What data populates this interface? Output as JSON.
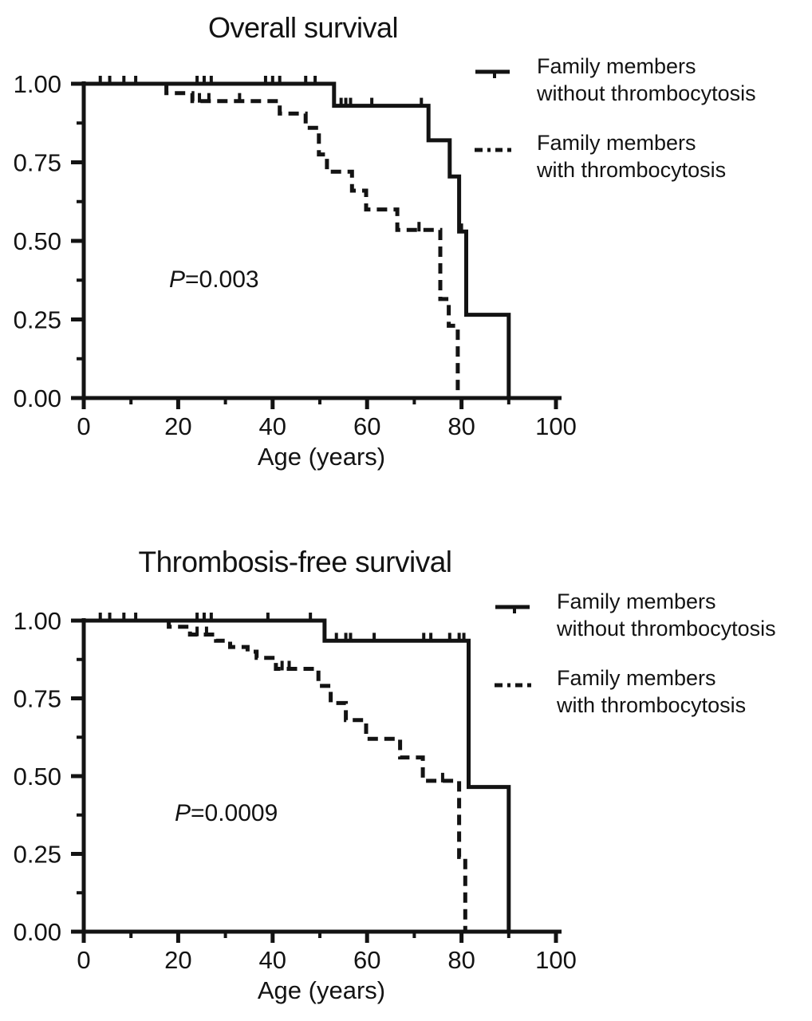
{
  "page": {
    "background": "#ffffff",
    "ink": "#131313",
    "figure_description": "Two Kaplan-Meier survival plots comparing family members with and without thrombocytosis"
  },
  "chart_data": [
    {
      "type": "line",
      "subtype": "kaplan-meier-step",
      "title": "Overall survival",
      "xlabel": "Age (years)",
      "ylabel": "",
      "xlim": [
        0,
        100
      ],
      "ylim": [
        0,
        1
      ],
      "grid": false,
      "xticks": [
        {
          "v": 0,
          "label": "0"
        },
        {
          "v": 20,
          "label": "20"
        },
        {
          "v": 40,
          "label": "40"
        },
        {
          "v": 60,
          "label": "60"
        },
        {
          "v": 80,
          "label": "80"
        },
        {
          "v": 100,
          "label": "100"
        }
      ],
      "xminor": [
        10,
        30,
        50,
        70,
        90
      ],
      "yticks": [
        {
          "v": 1.0,
          "label": "1.00"
        },
        {
          "v": 0.75,
          "label": "0.75"
        },
        {
          "v": 0.5,
          "label": "0.50"
        },
        {
          "v": 0.25,
          "label": "0.25"
        },
        {
          "v": 0.0,
          "label": "0.00"
        }
      ],
      "yminor": [
        0.875,
        0.625,
        0.375,
        0.125
      ],
      "annotation": {
        "p_italic": "P",
        "p_text": "=0.003"
      },
      "legend": {
        "position": "upper-right-outside",
        "entries": [
          {
            "line_style": "solid",
            "line1": "Family members",
            "line2": "without thrombocytosis"
          },
          {
            "line_style": "dashed",
            "line1": "Family members",
            "line2": "with thrombocytosis"
          }
        ]
      },
      "series": [
        {
          "name": "Family members without thrombocytosis",
          "line_style": "solid",
          "step_points": [
            [
              0,
              1.0
            ],
            [
              53,
              1.0
            ],
            [
              53,
              0.93
            ],
            [
              73,
              0.93
            ],
            [
              73,
              0.82
            ],
            [
              77.5,
              0.82
            ],
            [
              77.5,
              0.705
            ],
            [
              79.5,
              0.705
            ],
            [
              79.5,
              0.53
            ],
            [
              81,
              0.53
            ],
            [
              81,
              0.265
            ],
            [
              90,
              0.265
            ],
            [
              90,
              0.0
            ]
          ],
          "censor_marks": [
            [
              3.5,
              1.0
            ],
            [
              5.5,
              1.0
            ],
            [
              8.5,
              1.0
            ],
            [
              11,
              1.0
            ],
            [
              24,
              1.0
            ],
            [
              25.5,
              1.0
            ],
            [
              27,
              1.0
            ],
            [
              38.5,
              1.0
            ],
            [
              40,
              1.0
            ],
            [
              41.5,
              1.0
            ],
            [
              47,
              1.0
            ],
            [
              49,
              1.0
            ],
            [
              54.5,
              0.93
            ],
            [
              55.5,
              0.93
            ],
            [
              56.5,
              0.93
            ],
            [
              61,
              0.93
            ],
            [
              71.5,
              0.93
            ],
            [
              80,
              0.53
            ]
          ]
        },
        {
          "name": "Family members with thrombocytosis",
          "line_style": "dashed",
          "step_points": [
            [
              0,
              1.0
            ],
            [
              17.5,
              1.0
            ],
            [
              17.5,
              0.97
            ],
            [
              23,
              0.97
            ],
            [
              23,
              0.945
            ],
            [
              41.5,
              0.945
            ],
            [
              41.5,
              0.905
            ],
            [
              47,
              0.905
            ],
            [
              47,
              0.86
            ],
            [
              49.8,
              0.86
            ],
            [
              49.8,
              0.775
            ],
            [
              51.5,
              0.775
            ],
            [
              51.5,
              0.72
            ],
            [
              56.8,
              0.72
            ],
            [
              56.8,
              0.66
            ],
            [
              59.8,
              0.66
            ],
            [
              59.8,
              0.6
            ],
            [
              66.4,
              0.6
            ],
            [
              66.4,
              0.535
            ],
            [
              75.5,
              0.535
            ],
            [
              75.5,
              0.315
            ],
            [
              77.3,
              0.315
            ],
            [
              77.3,
              0.23
            ],
            [
              79.2,
              0.23
            ],
            [
              79.2,
              0.0
            ]
          ],
          "censor_marks": [
            [
              24.5,
              0.945
            ],
            [
              26.5,
              0.945
            ],
            [
              33,
              0.945
            ],
            [
              71,
              0.535
            ]
          ]
        }
      ]
    },
    {
      "type": "line",
      "subtype": "kaplan-meier-step",
      "title": "Thrombosis-free survival",
      "xlabel": "Age (years)",
      "ylabel": "",
      "xlim": [
        0,
        100
      ],
      "ylim": [
        0,
        1
      ],
      "grid": false,
      "xticks": [
        {
          "v": 0,
          "label": "0"
        },
        {
          "v": 20,
          "label": "20"
        },
        {
          "v": 40,
          "label": "40"
        },
        {
          "v": 60,
          "label": "60"
        },
        {
          "v": 80,
          "label": "80"
        },
        {
          "v": 100,
          "label": "100"
        }
      ],
      "xminor": [
        10,
        30,
        50,
        70,
        90
      ],
      "yticks": [
        {
          "v": 1.0,
          "label": "1.00"
        },
        {
          "v": 0.75,
          "label": "0.75"
        },
        {
          "v": 0.5,
          "label": "0.50"
        },
        {
          "v": 0.25,
          "label": "0.25"
        },
        {
          "v": 0.0,
          "label": "0.00"
        }
      ],
      "yminor": [
        0.875,
        0.625,
        0.375,
        0.125
      ],
      "annotation": {
        "p_italic": "P",
        "p_text": "=0.0009"
      },
      "legend": {
        "position": "upper-right-outside",
        "entries": [
          {
            "line_style": "solid",
            "line1": "Family members",
            "line2": "without thrombocytosis"
          },
          {
            "line_style": "dashed",
            "line1": "Family members",
            "line2": "with thrombocytosis"
          }
        ]
      },
      "series": [
        {
          "name": "Family members without thrombocytosis",
          "line_style": "solid",
          "step_points": [
            [
              0,
              1.0
            ],
            [
              51,
              1.0
            ],
            [
              51,
              0.935
            ],
            [
              81.5,
              0.935
            ],
            [
              81.5,
              0.465
            ],
            [
              90,
              0.465
            ],
            [
              90,
              0.0
            ]
          ],
          "censor_marks": [
            [
              3.5,
              1.0
            ],
            [
              5.5,
              1.0
            ],
            [
              8.5,
              1.0
            ],
            [
              11,
              1.0
            ],
            [
              24,
              1.0
            ],
            [
              25.5,
              1.0
            ],
            [
              27,
              1.0
            ],
            [
              39,
              1.0
            ],
            [
              48,
              1.0
            ],
            [
              53.5,
              0.935
            ],
            [
              55.5,
              0.935
            ],
            [
              56.5,
              0.935
            ],
            [
              61.5,
              0.935
            ],
            [
              72,
              0.935
            ],
            [
              73.5,
              0.935
            ],
            [
              77.5,
              0.935
            ],
            [
              79.5,
              0.935
            ],
            [
              80.5,
              0.935
            ]
          ]
        },
        {
          "name": "Family members with thrombocytosis",
          "line_style": "dashed",
          "step_points": [
            [
              0,
              1.0
            ],
            [
              18,
              1.0
            ],
            [
              18,
              0.98
            ],
            [
              22.5,
              0.98
            ],
            [
              22.5,
              0.955
            ],
            [
              28,
              0.955
            ],
            [
              28,
              0.935
            ],
            [
              31,
              0.935
            ],
            [
              31,
              0.915
            ],
            [
              34.7,
              0.915
            ],
            [
              34.7,
              0.9
            ],
            [
              36.6,
              0.9
            ],
            [
              36.6,
              0.88
            ],
            [
              40.7,
              0.88
            ],
            [
              40.7,
              0.845
            ],
            [
              49.7,
              0.845
            ],
            [
              49.7,
              0.79
            ],
            [
              52.3,
              0.79
            ],
            [
              52.3,
              0.735
            ],
            [
              55.5,
              0.735
            ],
            [
              55.5,
              0.68
            ],
            [
              59.8,
              0.68
            ],
            [
              59.8,
              0.62
            ],
            [
              67,
              0.62
            ],
            [
              67,
              0.56
            ],
            [
              71.8,
              0.56
            ],
            [
              71.8,
              0.485
            ],
            [
              79.5,
              0.485
            ],
            [
              79.5,
              0.24
            ],
            [
              80.8,
              0.24
            ],
            [
              80.8,
              0.0
            ]
          ],
          "censor_marks": [
            [
              24,
              0.955
            ],
            [
              26,
              0.955
            ],
            [
              42,
              0.845
            ],
            [
              43.5,
              0.845
            ],
            [
              76,
              0.485
            ]
          ]
        }
      ]
    }
  ]
}
